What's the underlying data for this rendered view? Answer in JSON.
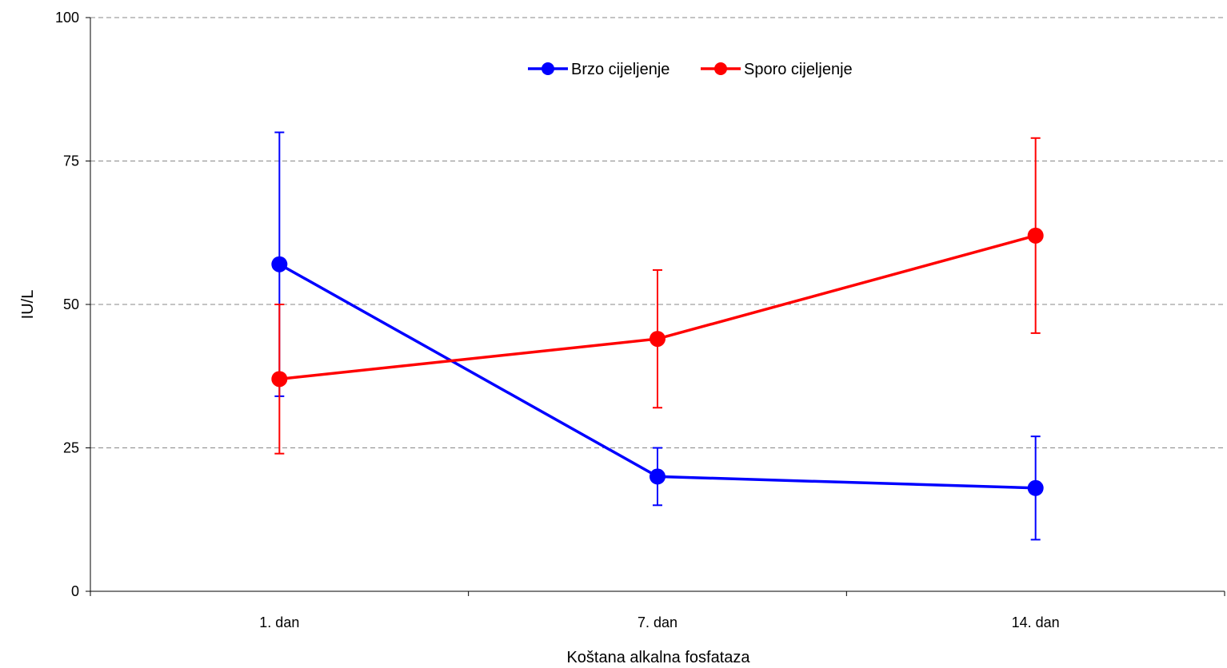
{
  "chart_data": {
    "type": "line",
    "title": "",
    "xlabel": "Koštana alkalna fosfataza",
    "ylabel": "IU/L",
    "categories": [
      "1. dan",
      "7. dan",
      "14. dan"
    ],
    "ylim": [
      0,
      100
    ],
    "yticks": [
      0,
      25,
      50,
      75,
      100
    ],
    "grid": "horizontal dashed",
    "legend_position": "top-center",
    "series": [
      {
        "name": "Brzo cijeljenje",
        "color": "#0000ff",
        "values": [
          57,
          20,
          18
        ],
        "error_low": [
          34,
          15,
          9
        ],
        "error_high": [
          80,
          25,
          27
        ]
      },
      {
        "name": "Sporo cijeljenje",
        "color": "#ff0000",
        "values": [
          37,
          44,
          62
        ],
        "error_low": [
          24,
          32,
          45
        ],
        "error_high": [
          50,
          56,
          79
        ]
      }
    ]
  }
}
